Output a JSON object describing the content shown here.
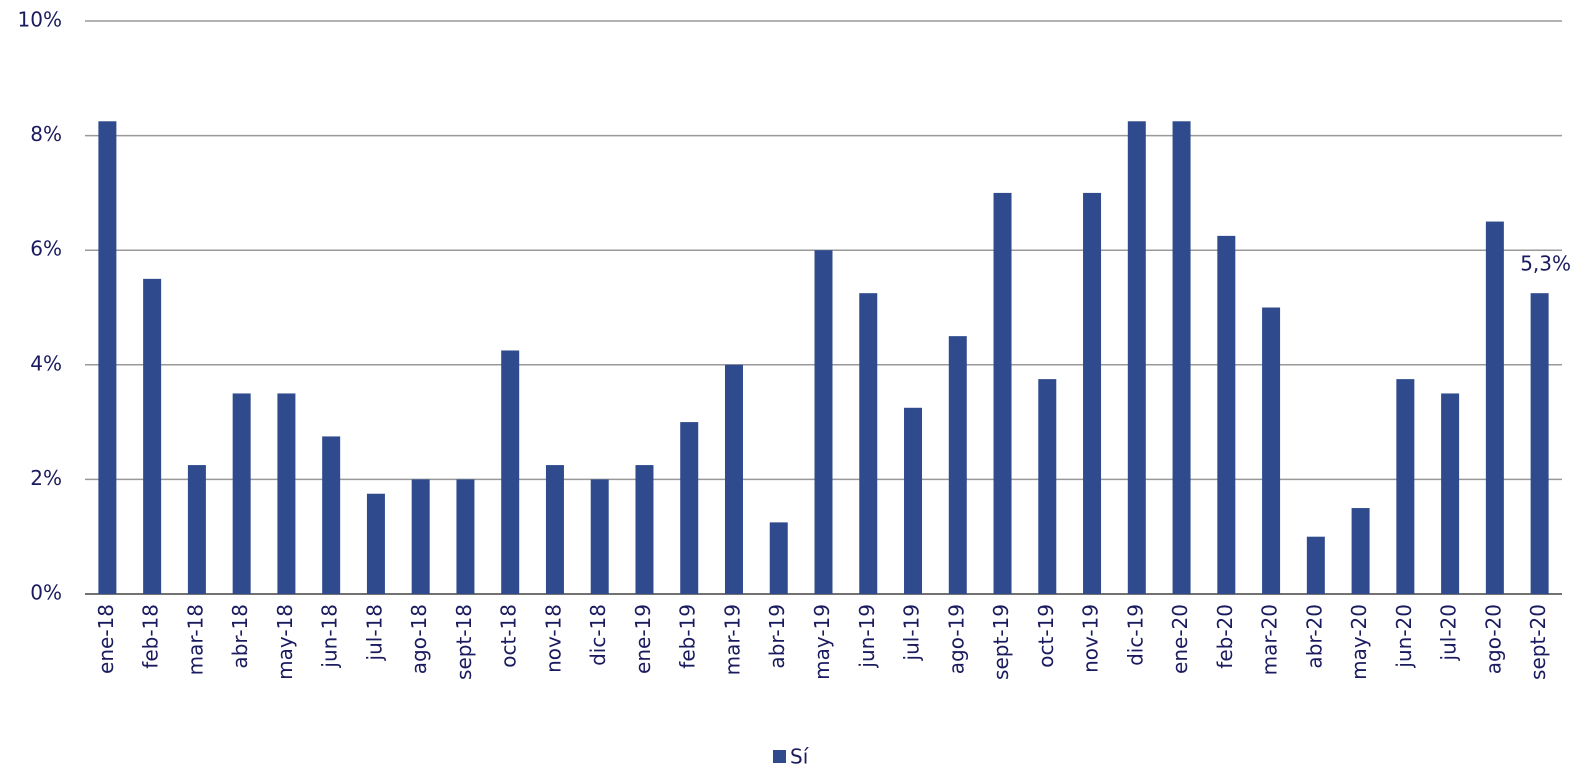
{
  "chart_data": {
    "type": "bar",
    "categories": [
      "ene-18",
      "feb-18",
      "mar-18",
      "abr-18",
      "may-18",
      "jun-18",
      "jul-18",
      "ago-18",
      "sept-18",
      "oct-18",
      "nov-18",
      "dic-18",
      "ene-19",
      "feb-19",
      "mar-19",
      "abr-19",
      "may-19",
      "jun-19",
      "jul-19",
      "ago-19",
      "sept-19",
      "oct-19",
      "nov-19",
      "dic-19",
      "ene-20",
      "feb-20",
      "mar-20",
      "abr-20",
      "may-20",
      "jun-20",
      "jul-20",
      "ago-20",
      "sept-20"
    ],
    "series": [
      {
        "name": "Sí",
        "color": "#2f4b8e",
        "values": [
          8.25,
          5.5,
          2.25,
          3.5,
          3.5,
          2.75,
          1.75,
          2,
          2,
          4.25,
          2.25,
          2,
          2.25,
          3,
          4,
          1.25,
          6,
          5.25,
          3.25,
          4.5,
          7,
          3.75,
          7,
          8.25,
          8.25,
          6.25,
          5,
          1,
          1.5,
          3.75,
          3.5,
          6.5,
          5.25
        ],
        "value_labels": [
          null,
          null,
          null,
          null,
          null,
          null,
          null,
          null,
          null,
          null,
          null,
          null,
          null,
          null,
          null,
          null,
          null,
          null,
          null,
          null,
          null,
          null,
          null,
          null,
          null,
          null,
          null,
          null,
          null,
          null,
          null,
          null,
          "5,3%"
        ]
      }
    ],
    "ylim": [
      0,
      10
    ],
    "yticks": [
      {
        "value": 0,
        "label": "0%"
      },
      {
        "value": 2,
        "label": "2%"
      },
      {
        "value": 4,
        "label": "4%"
      },
      {
        "value": 6,
        "label": "6%"
      },
      {
        "value": 8,
        "label": "8%"
      },
      {
        "value": 10,
        "label": "10%"
      }
    ],
    "grid": true,
    "legend": "bottom"
  }
}
